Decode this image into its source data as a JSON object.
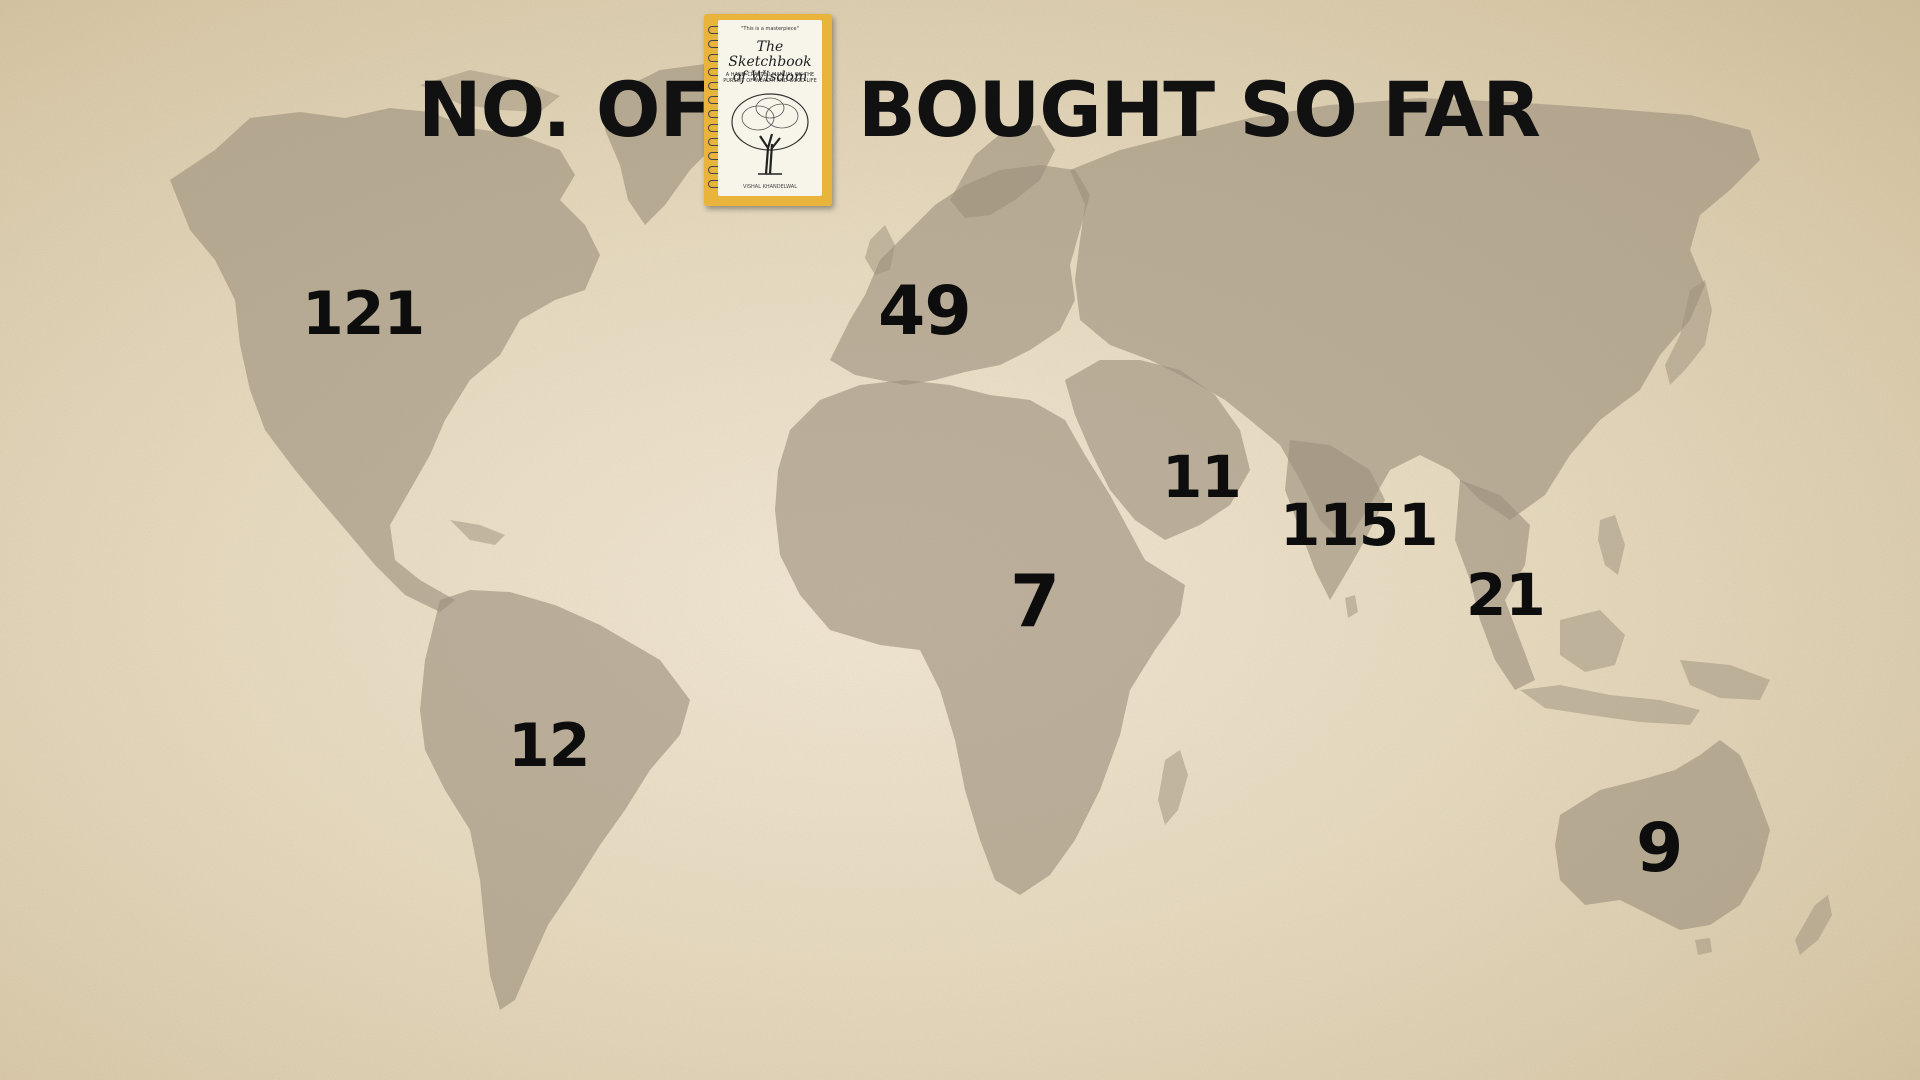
{
  "title": {
    "left": "NO. OF",
    "right": "BOUGHT SO FAR"
  },
  "book": {
    "quote": "\"This is a masterpiece\"",
    "title": "The Sketchbook of Wisdom",
    "subtitle": "A hand-crafted manual on the pursuit of wealth and good life",
    "author": "Vishal Khandelwal",
    "cover_color": "#e8b43c"
  },
  "regions": [
    {
      "name": "north-america",
      "count": "121"
    },
    {
      "name": "europe",
      "count": "49"
    },
    {
      "name": "middle-east",
      "count": "11"
    },
    {
      "name": "india",
      "count": "1151"
    },
    {
      "name": "africa",
      "count": "7"
    },
    {
      "name": "southeast-asia",
      "count": "21"
    },
    {
      "name": "south-america",
      "count": "12"
    },
    {
      "name": "australia",
      "count": "9"
    }
  ],
  "colors": {
    "background": "#e8dcc2",
    "landmass": "#9c8f7c",
    "text": "#0d0d0d"
  }
}
